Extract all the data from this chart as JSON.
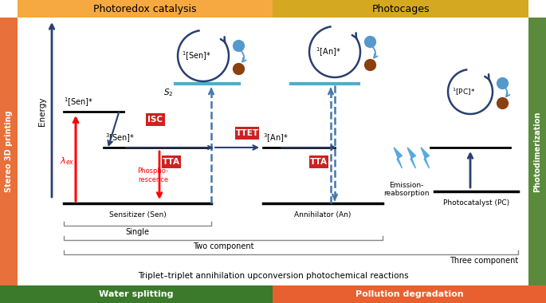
{
  "bg_color": "#ffffff",
  "top_bar_orange": "#F5A940",
  "top_bar_yellow": "#D4A820",
  "left_bar_orange": "#E8703A",
  "right_bar_green": "#5A8A3C",
  "bottom_green": "#3A7A2A",
  "bottom_orange": "#E86030",
  "red_label_bg": "#CC2222",
  "blue_dark": "#2A3F6F",
  "blue_mid": "#4477AA",
  "blue_light": "#55AADD",
  "teal": "#55AACC",
  "brown": "#8B4010",
  "circle_blue": "#5599CC",
  "top_left_text": "Photoredox catalysis",
  "top_right_text": "Photocages",
  "left_side_text": "Stereo 3D printing",
  "right_side_text": "Photodimerization",
  "bottom_left_text": "Water splitting",
  "bottom_right_text": "Pollution degradation",
  "title_text": "Triplet–triplet annihilation upconversion photochemical reactions"
}
